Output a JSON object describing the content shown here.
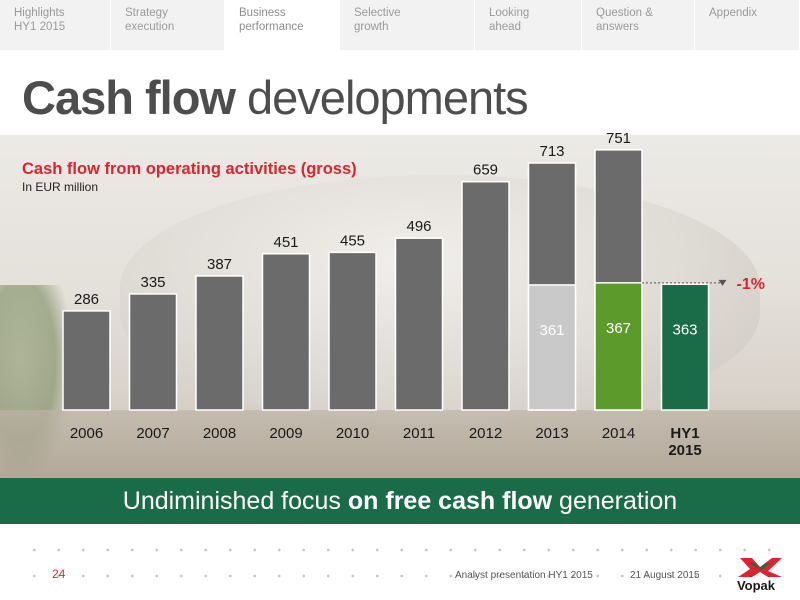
{
  "nav": {
    "tabs": [
      {
        "label": "Highlights\nHY1 2015",
        "active": false
      },
      {
        "label": "Strategy\nexecution",
        "active": false
      },
      {
        "label": "Business\nperformance",
        "active": true
      },
      {
        "label": "Selective\ngrowth",
        "active": false
      },
      {
        "label": "Looking\nahead",
        "active": false
      },
      {
        "label": "Question &\nanswers",
        "active": false
      },
      {
        "label": "Appendix",
        "active": false
      }
    ]
  },
  "page": {
    "title_bold": "Cash flow",
    "title_rest": " developments"
  },
  "chart_data": {
    "type": "bar",
    "title": "Cash flow from operating activities (gross)",
    "subtitle": "In EUR million",
    "categories": [
      "2006",
      "2007",
      "2008",
      "2009",
      "2010",
      "2011",
      "2012",
      "2013",
      "2014",
      "HY1\n2015"
    ],
    "values": [
      286,
      335,
      387,
      451,
      455,
      496,
      659,
      713,
      751,
      363
    ],
    "first_half_values": [
      null,
      null,
      null,
      null,
      null,
      null,
      null,
      361,
      367,
      363
    ],
    "change_label": "-1%",
    "colors": {
      "full_year": "#6b6b6b",
      "first_half_2013": "#c9c9c9",
      "first_half_2014": "#5d9a2c",
      "first_half_2015": "#1a6b47",
      "change": "#d9262e"
    }
  },
  "banner": {
    "text_a": "Undiminished focus ",
    "text_bold": "on free cash flow",
    "text_b": " generation"
  },
  "footer": {
    "page_number": "24",
    "presentation": "Analyst presentation HY1 2015",
    "date": "21 August 2015",
    "logo_text": "Vopak"
  }
}
